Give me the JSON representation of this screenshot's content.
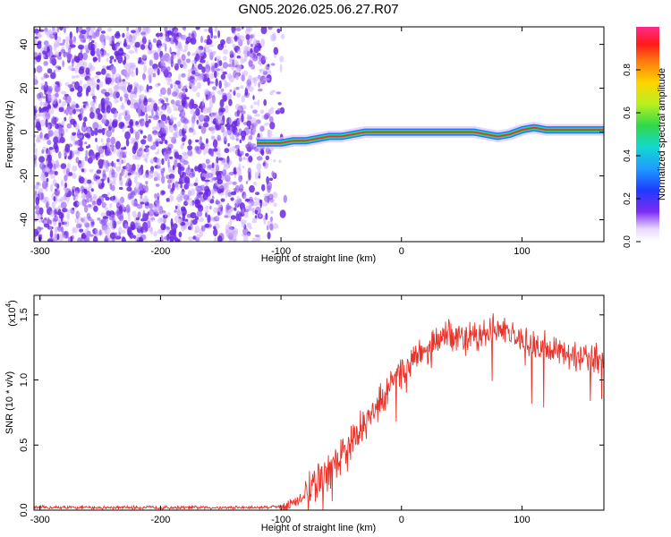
{
  "figure_title": "GN05.2026.025.06.27.R07",
  "colors": {
    "line": "#e8322a",
    "spectro_high": "#e8322a",
    "spectro_mid": "#2fd84a",
    "spectro_low": "#1e6cff",
    "noise": "#6a28e0"
  },
  "chart_data": [
    {
      "type": "heatmap",
      "title": "GN05.2026.025.06.27.R07",
      "xlabel": "Height of straight line (km)",
      "ylabel": "Frequency (Hz)",
      "xlim": [
        -305,
        168
      ],
      "ylim": [
        -50,
        48
      ],
      "xticks": [
        -300,
        -200,
        -100,
        0,
        100
      ],
      "yticks": [
        -40,
        -20,
        0,
        20,
        40
      ],
      "xtick_labels": [
        "-300",
        "-200",
        "-100",
        "0",
        "100"
      ],
      "ytick_labels": [
        "-40",
        "-20",
        "0",
        "20",
        "40"
      ],
      "noise_region_x": [
        -305,
        -95
      ],
      "ridge": {
        "x": [
          -120,
          -110,
          -100,
          -90,
          -80,
          -70,
          -60,
          -50,
          -40,
          -30,
          -20,
          -10,
          0,
          20,
          40,
          60,
          70,
          80,
          90,
          100,
          110,
          120,
          140,
          168
        ],
        "freq": [
          -5,
          -5,
          -5,
          -4,
          -4,
          -3,
          -2,
          -2,
          -1,
          0,
          0,
          0,
          0,
          0,
          0,
          0,
          -1,
          -2,
          -1,
          1,
          2,
          1,
          1,
          1
        ]
      },
      "colorbar": {
        "label": "Normalized spectral amplitude",
        "range": [
          0,
          1
        ],
        "ticks": [
          0,
          0.2,
          0.4,
          0.6,
          0.8
        ],
        "tick_labels": [
          "0.0",
          "0.2",
          "0.4",
          "0.6",
          "0.8"
        ]
      }
    },
    {
      "type": "line",
      "xlabel": "Height of straight line (km)",
      "ylabel": "SNR (10 * v/v)",
      "y_multiplier": "(x10",
      "y_multiplier_exp": "4",
      "y_multiplier_close": ")",
      "xlim": [
        -305,
        168
      ],
      "ylim": [
        0,
        1.65
      ],
      "xticks": [
        -300,
        -200,
        -100,
        0,
        100
      ],
      "yticks": [
        0,
        0.5,
        1.0,
        1.5
      ],
      "xtick_labels": [
        "-300",
        "-200",
        "-100",
        "0",
        "100"
      ],
      "ytick_labels": [
        "0.0",
        "0.5",
        "1.0",
        "1.5"
      ],
      "series": [
        {
          "name": "SNR",
          "x": [
            -305,
            -200,
            -120,
            -100,
            -90,
            -80,
            -70,
            -60,
            -50,
            -40,
            -30,
            -20,
            -10,
            0,
            10,
            20,
            30,
            40,
            50,
            60,
            70,
            80,
            85,
            90,
            100,
            110,
            120,
            130,
            140,
            150,
            160,
            168
          ],
          "values": [
            0.02,
            0.02,
            0.02,
            0.03,
            0.05,
            0.1,
            0.2,
            0.3,
            0.42,
            0.55,
            0.68,
            0.8,
            0.95,
            1.05,
            1.15,
            1.24,
            1.3,
            1.33,
            1.34,
            1.33,
            1.35,
            1.4,
            1.38,
            1.32,
            1.28,
            1.25,
            1.24,
            1.22,
            1.2,
            1.18,
            1.17,
            1.16
          ],
          "spike_amplitude": 0.12
        }
      ]
    }
  ]
}
